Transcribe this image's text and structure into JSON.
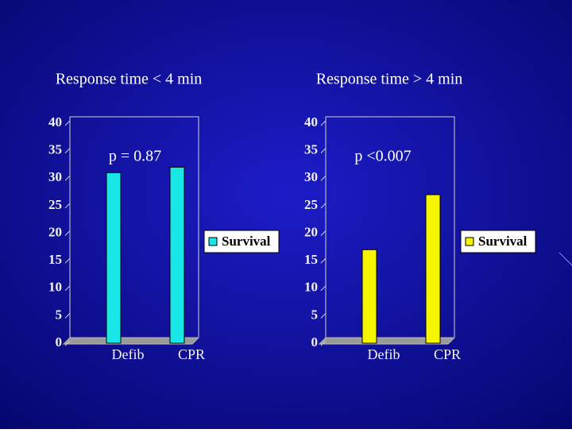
{
  "chart_data": [
    {
      "type": "bar",
      "title": "Response time < 4 min",
      "annotation": "p = 0.87",
      "categories": [
        "Defib",
        "CPR"
      ],
      "series": [
        {
          "name": "Survival",
          "color": "#19e6e6",
          "values": [
            31,
            32
          ]
        }
      ],
      "ylim": [
        0,
        40
      ],
      "yticks": [
        0,
        5,
        10,
        15,
        20,
        25,
        30,
        35,
        40
      ]
    },
    {
      "type": "bar",
      "title": "Response time > 4 min",
      "annotation": "p <0.007",
      "categories": [
        "Defib",
        "CPR"
      ],
      "series": [
        {
          "name": "Survival",
          "color": "#f5f500",
          "values": [
            17,
            27
          ]
        }
      ],
      "ylim": [
        0,
        40
      ],
      "yticks": [
        0,
        5,
        10,
        15,
        20,
        25,
        30,
        35,
        40
      ]
    }
  ]
}
